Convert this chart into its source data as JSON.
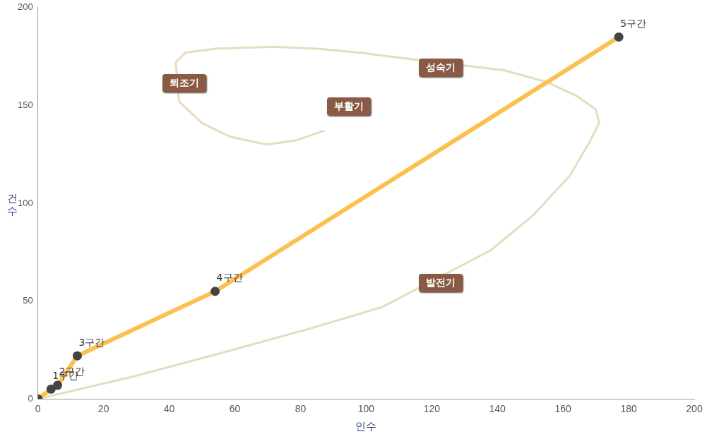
{
  "chart_data": {
    "type": "line",
    "xlabel": "인수",
    "ylabel": "건수",
    "x": [
      0,
      4,
      6,
      12,
      54,
      177
    ],
    "series": [
      {
        "color": "#e6dcc0",
        "marker": "none",
        "x": [
          0,
          28,
          56,
          83,
          105,
          138,
          151,
          162,
          168,
          171,
          170,
          164,
          155,
          142,
          107,
          98,
          85,
          72,
          54,
          45,
          42,
          43,
          50,
          58.6,
          69.6,
          78.4,
          87
        ],
        "values": [
          0,
          11,
          23.5,
          36,
          47,
          76,
          94,
          114,
          131,
          141,
          148,
          155,
          162,
          168,
          175,
          177,
          179,
          180,
          179,
          177,
          172,
          152,
          141,
          134,
          130,
          132,
          137
        ]
      },
      {
        "color": "#fbc04e",
        "values": [
          0,
          5,
          7,
          22,
          55,
          185
        ]
      }
    ],
    "xlim": [
      0,
      200
    ],
    "xticks": [
      0,
      20,
      40,
      60,
      80,
      100,
      120,
      140,
      160,
      180,
      200
    ],
    "ylim": [
      0,
      200
    ],
    "yticks": [
      0,
      50,
      100,
      150,
      200
    ],
    "annotations": [
      "퇴조기",
      "성숙기",
      "부활기",
      "발전기",
      {
        "text": "1구간",
        "x": 4,
        "y": 5
      },
      {
        "text": "2구간",
        "x": 6,
        "y": 7
      },
      {
        "text": "3구간",
        "x": 12,
        "y": 22
      },
      {
        "text": "4구간",
        "x": 54,
        "y": 55
      },
      {
        "text": "5구간",
        "x": 177,
        "y": 185
      }
    ],
    "marker": "circle",
    "grid": false,
    "legend": false
  }
}
